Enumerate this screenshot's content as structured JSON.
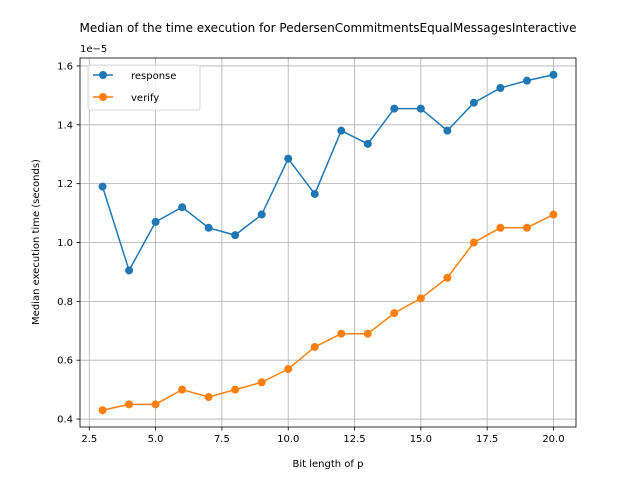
{
  "chart_data": {
    "type": "line",
    "title": "Median of the time execution for PedersenCommitmentsEqualMessagesInteractive",
    "xlabel": "Bit length of p",
    "ylabel": "Median execution time (seconds)",
    "y_scale_label": "1e−5",
    "x": [
      3,
      4,
      5,
      6,
      7,
      8,
      9,
      10,
      11,
      12,
      13,
      14,
      15,
      16,
      17,
      18,
      19,
      20
    ],
    "series": [
      {
        "name": "response",
        "color": "#1f77b4",
        "values": [
          1.19,
          0.905,
          1.07,
          1.12,
          1.05,
          1.025,
          1.095,
          1.285,
          1.165,
          1.38,
          1.335,
          1.455,
          1.455,
          1.38,
          1.475,
          1.525,
          1.55,
          1.57
        ]
      },
      {
        "name": "verify",
        "color": "#ff7f0e",
        "values": [
          0.43,
          0.45,
          0.45,
          0.5,
          0.475,
          0.5,
          0.525,
          0.57,
          0.645,
          0.69,
          0.69,
          0.76,
          0.81,
          0.88,
          1.0,
          1.05,
          1.05,
          1.095
        ]
      }
    ],
    "xlim": [
      2.15,
      20.85
    ],
    "ylim": [
      0.373,
      1.627
    ],
    "x_ticks": [
      "2.5",
      "5.0",
      "7.5",
      "10.0",
      "12.5",
      "15.0",
      "17.5",
      "20.0"
    ],
    "y_ticks": [
      "0.4",
      "0.6",
      "0.8",
      "1.0",
      "1.2",
      "1.4",
      "1.6"
    ],
    "grid": true,
    "legend_position": "top-left"
  }
}
